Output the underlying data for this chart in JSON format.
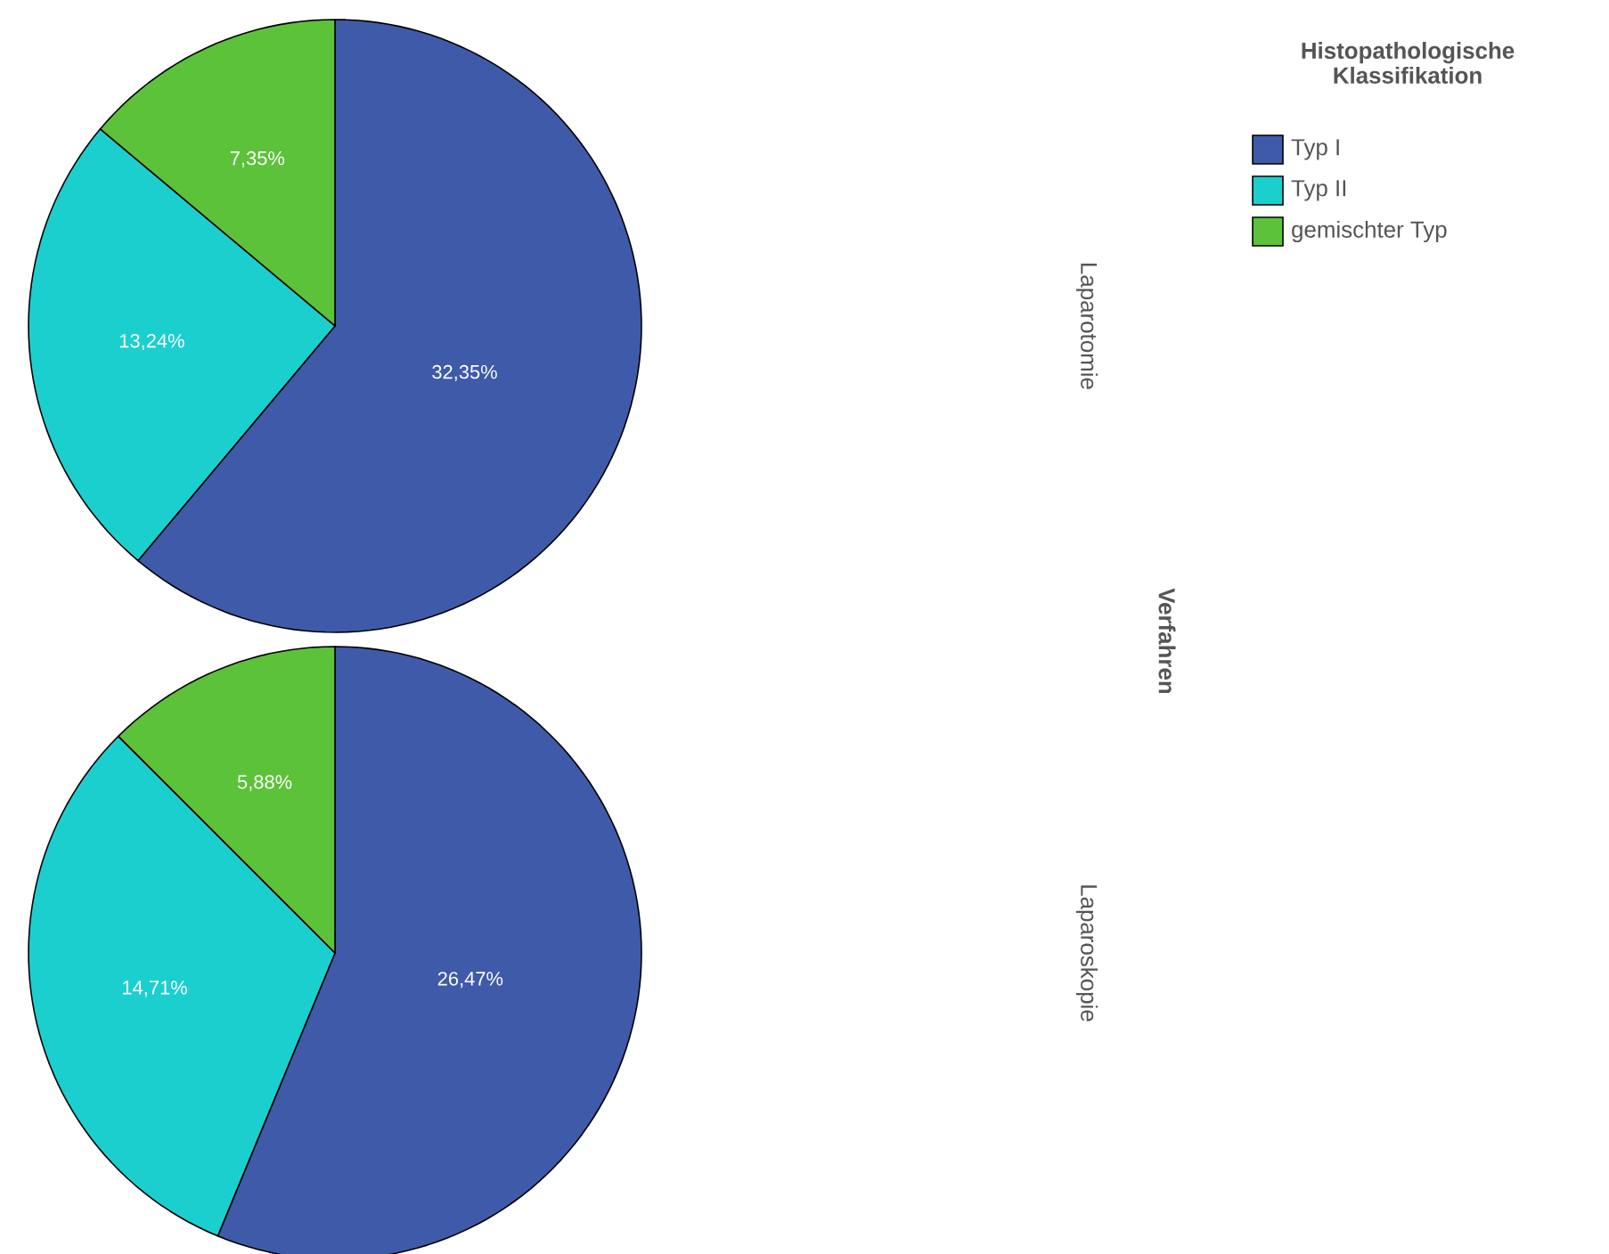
{
  "chart_data": [
    {
      "type": "pie",
      "y2label": "Laparotomie",
      "legend_title": "Histopathologische Klassifikation",
      "legend": "top right",
      "annotations": [
        "Verfahren"
      ],
      "categories": [
        "Typ I",
        "Typ II",
        "gemischter Typ"
      ],
      "values": [
        32.35,
        13.24,
        7.35
      ],
      "value_labels": [
        "32,35%",
        "13,24%",
        "7,35%"
      ],
      "colors": [
        "#3f5aa8",
        "#1ccfcf",
        "#5cc23a"
      ]
    },
    {
      "type": "pie",
      "y2label": "Laparoskopie",
      "categories": [
        null,
        null,
        null
      ],
      "values": [
        26.47,
        14.71,
        5.88
      ],
      "value_labels": [
        "26,47%",
        "14,71%",
        "5,88%"
      ],
      "colors": [
        "#3f5aa8",
        "#1ccfcf",
        "#5cc23a"
      ]
    }
  ]
}
